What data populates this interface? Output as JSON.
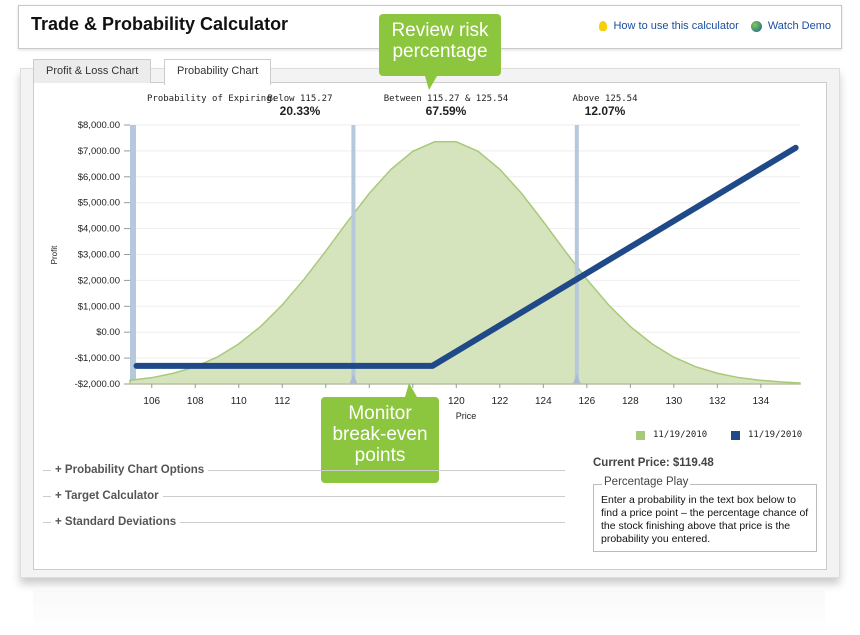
{
  "header": {
    "title": "Trade & Probability Calculator",
    "help_link": "How to use this calculator",
    "demo_link": "Watch Demo"
  },
  "tabs": [
    {
      "label": "Profit & Loss Chart",
      "active": false
    },
    {
      "label": "Probability Chart",
      "active": true
    }
  ],
  "callouts": {
    "risk": "Review risk percentage",
    "breakeven": "Monitor break-even points"
  },
  "probabilities": {
    "label": "Probability of Expiring:",
    "below": {
      "label": "Below 115.27",
      "value": "20.33%"
    },
    "between": {
      "label": "Between 115.27 & 125.54",
      "value": "67.59%"
    },
    "above": {
      "label": "Above 125.54",
      "value": "12.07%"
    }
  },
  "chart_data": {
    "type": "area",
    "xlabel": "Price",
    "ylabel": "Profit",
    "xlim": [
      105,
      135.8
    ],
    "ylim": [
      -2000,
      8000
    ],
    "xticks": [
      106,
      108,
      110,
      112,
      114,
      116,
      118,
      120,
      122,
      124,
      126,
      128,
      130,
      132,
      134
    ],
    "xtick_labels": [
      "106",
      "108",
      "110",
      "112",
      "",
      "",
      "",
      "120",
      "122",
      "124",
      "126",
      "128",
      "130",
      "132",
      "134"
    ],
    "yticks": [
      8000,
      7000,
      6000,
      5000,
      4000,
      3000,
      2000,
      1000,
      0,
      -1000,
      -2000
    ],
    "ytick_labels": [
      "$8,000.00",
      "$7,000.00",
      "$6,000.00",
      "$5,000.00",
      "$4,000.00",
      "$3,000.00",
      "$2,000.00",
      "$1,000.00",
      "$0.00",
      "-$1,000.00",
      "-$2,000.00"
    ],
    "grid": true,
    "breakeven_lines": [
      115.27,
      125.54
    ],
    "series": [
      {
        "name": "11/19/2010",
        "color": "#a9c97a",
        "kind": "distribution area",
        "x": [
          105,
          106,
          107,
          108,
          109,
          110,
          111,
          112,
          113,
          114,
          115,
          116,
          117,
          118,
          119,
          120,
          121,
          122,
          123,
          124,
          125,
          126,
          127,
          128,
          129,
          130,
          131,
          132,
          133,
          134,
          135,
          136
        ],
        "y": [
          -1859,
          -1756,
          -1586,
          -1333,
          -966,
          -449,
          218,
          1055,
          2042,
          3132,
          4270,
          5360,
          6291,
          6986,
          7353,
          7353,
          6986,
          6291,
          5360,
          4270,
          3132,
          2042,
          1055,
          218,
          -449,
          -966,
          -1333,
          -1586,
          -1756,
          -1859,
          -1925,
          -1962
        ]
      },
      {
        "name": "11/19/2010",
        "color": "#1f4a87",
        "kind": "profit line",
        "x": [
          105.3,
          118.9,
          135.6
        ],
        "y": [
          -1300,
          -1300,
          7120
        ]
      }
    ],
    "legend_position": "bottom-right"
  },
  "sections": [
    "Probability Chart Options",
    "Target Calculator",
    "Standard Deviations"
  ],
  "current_price": "Current Price: $119.48",
  "percentage_play": {
    "title": "Percentage Play",
    "text": "Enter a probability in the text box below to find a price point – the percentage chance of the stock finishing above that price is the probability you entered."
  }
}
